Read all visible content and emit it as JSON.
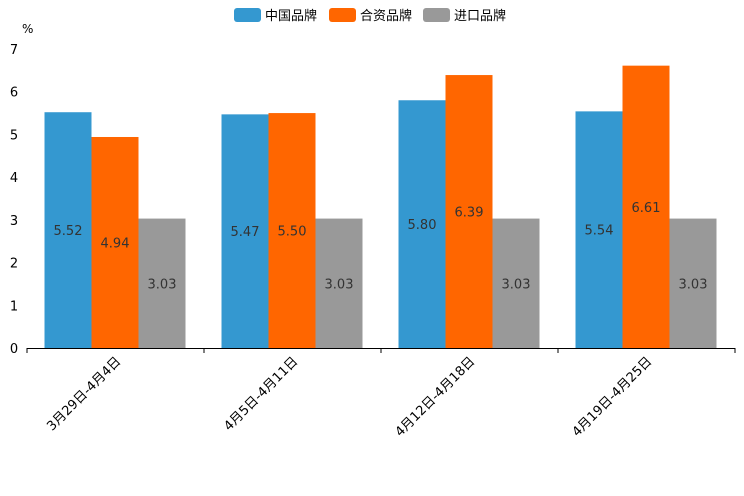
{
  "chart_data": {
    "type": "bar",
    "title": "",
    "xlabel": "",
    "ylabel": "%",
    "ylim": [
      0,
      7
    ],
    "yticks": [
      0,
      1,
      2,
      3,
      4,
      5,
      6,
      7
    ],
    "grid": false,
    "legend_position": "top-center",
    "categories": [
      "3月29日-4月4日",
      "4月5日-4月11日",
      "4月12日-4月18日",
      "4月19日-4月25日"
    ],
    "series": [
      {
        "name": "中国品牌",
        "color": "#3498d0",
        "values": [
          5.52,
          5.47,
          5.8,
          5.54
        ],
        "labels": [
          "5.52",
          "5.47",
          "5.80",
          "5.54"
        ]
      },
      {
        "name": "合资品牌",
        "color": "#ff6600",
        "values": [
          4.94,
          5.5,
          6.39,
          6.61
        ],
        "labels": [
          "4.94",
          "5.50",
          "6.39",
          "6.61"
        ]
      },
      {
        "name": "进口品牌",
        "color": "#999999",
        "values": [
          3.03,
          3.03,
          3.03,
          3.03
        ],
        "labels": [
          "3.03",
          "3.03",
          "3.03",
          "3.03"
        ]
      }
    ]
  }
}
